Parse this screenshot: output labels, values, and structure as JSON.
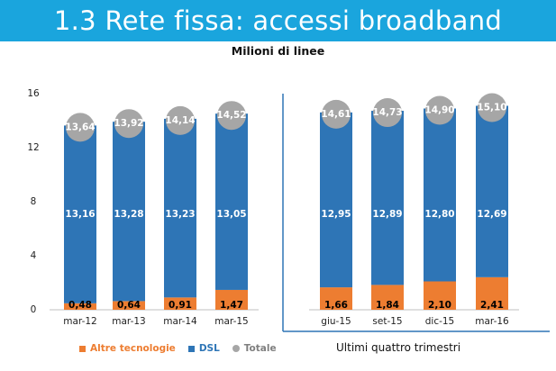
{
  "header": {
    "title": "1.3 Rete fissa: accessi broadband"
  },
  "chart_data": {
    "type": "bar",
    "stacked": true,
    "title": "Milioni di linee",
    "categories": [
      "mar-12",
      "mar-13",
      "mar-14",
      "mar-15",
      "giu-15",
      "set-15",
      "dic-15",
      "mar-16"
    ],
    "series": [
      {
        "name": "Altre tecnologie",
        "values": [
          0.48,
          0.64,
          0.91,
          1.47,
          1.66,
          1.84,
          2.1,
          2.41
        ],
        "labels": [
          "0,48",
          "0,64",
          "0,91",
          "1,47",
          "1,66",
          "1,84",
          "2,10",
          "2,41"
        ],
        "color": "#ed7d31"
      },
      {
        "name": "DSL",
        "values": [
          13.16,
          13.28,
          13.23,
          13.05,
          12.95,
          12.89,
          12.8,
          12.69
        ],
        "labels": [
          "13,16",
          "13,28",
          "13,23",
          "13,05",
          "12,95",
          "12,89",
          "12,80",
          "12,69"
        ],
        "color": "#2e75b6"
      }
    ],
    "totals": {
      "name": "Totale",
      "values": [
        13.64,
        13.92,
        14.14,
        14.52,
        14.61,
        14.73,
        14.9,
        15.1
      ],
      "labels": [
        "13,64",
        "13,92",
        "14,14",
        "14,52",
        "14,61",
        "14,73",
        "14,90",
        "15,10"
      ],
      "color": "#a6a6a6"
    },
    "ylim": [
      0,
      16
    ],
    "yticks": [
      0,
      4,
      8,
      12,
      16
    ],
    "grid": false,
    "legend": "bottom-left",
    "group_label": "Ultimi quattro trimestri"
  }
}
